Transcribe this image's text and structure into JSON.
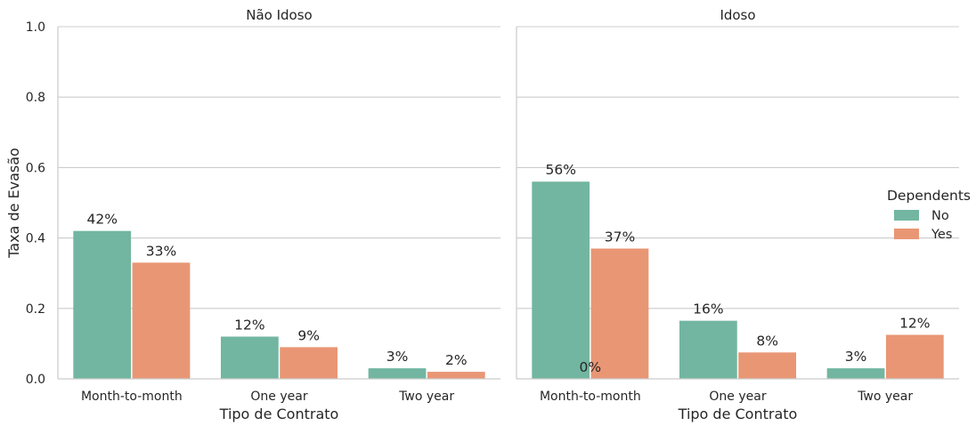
{
  "chart_data": {
    "type": "bar",
    "ylabel": "Taxa de Evasão",
    "ylim": [
      0,
      1.0
    ],
    "yticks": [
      "0.0",
      "0.2",
      "0.4",
      "0.6",
      "0.8",
      "1.0"
    ],
    "grid": true,
    "legend": {
      "title": "Dependents",
      "placement": "right",
      "entries": [
        {
          "name": "No",
          "color": "#72b6a1"
        },
        {
          "name": "Yes",
          "color": "#e99675"
        }
      ]
    },
    "panels": [
      {
        "title": "Não Idoso",
        "xlabel": "Tipo de Contrato",
        "categories": [
          "Month-to-month",
          "One year",
          "Two year"
        ],
        "series": [
          {
            "name": "No",
            "values": [
              0.42,
              0.12,
              0.03
            ],
            "labels": [
              "42%",
              "12%",
              "3%"
            ]
          },
          {
            "name": "Yes",
            "values": [
              0.33,
              0.09,
              0.02
            ],
            "labels": [
              "33%",
              "9%",
              "2%"
            ]
          }
        ],
        "extra_labels": []
      },
      {
        "title": "Idoso",
        "xlabel": "Tipo de Contrato",
        "categories": [
          "Month-to-month",
          "One year",
          "Two year"
        ],
        "series": [
          {
            "name": "No",
            "values": [
              0.56,
              0.165,
              0.03
            ],
            "labels": [
              "56%",
              "16%",
              "3%"
            ]
          },
          {
            "name": "Yes",
            "values": [
              0.37,
              0.075,
              0.125
            ],
            "labels": [
              "37%",
              "8%",
              "12%"
            ]
          }
        ],
        "extra_labels": [
          {
            "text": "0%",
            "category": 0,
            "value": 0.0
          }
        ]
      }
    ]
  }
}
